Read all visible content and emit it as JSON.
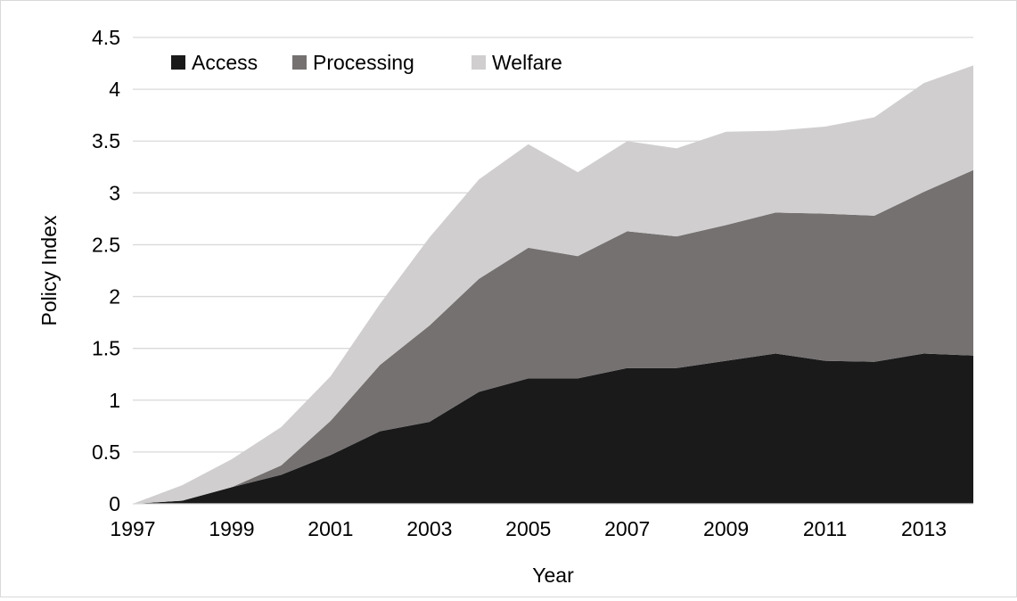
{
  "chart_data": {
    "type": "area",
    "stacked": true,
    "title": "",
    "xlabel": "Year",
    "ylabel": "Policy Index",
    "ylim": [
      0,
      4.5
    ],
    "xlim": [
      1997,
      2014
    ],
    "yticks": [
      "0",
      "0.5",
      "1",
      "1.5",
      "2",
      "2.5",
      "3",
      "3.5",
      "4",
      "4.5"
    ],
    "xticks": [
      "1997",
      "1999",
      "2001",
      "2003",
      "2005",
      "2007",
      "2009",
      "2011",
      "2013"
    ],
    "grid": true,
    "legend_position": "top-left",
    "x": [
      1997,
      1998,
      1999,
      2000,
      2001,
      2002,
      2003,
      2004,
      2005,
      2006,
      2007,
      2008,
      2009,
      2010,
      2011,
      2012,
      2013,
      2014
    ],
    "series": [
      {
        "name": "Access",
        "color": "#1a1a1a",
        "values": [
          0,
          0.03,
          0.16,
          0.28,
          0.47,
          0.7,
          0.79,
          1.08,
          1.21,
          1.21,
          1.31,
          1.31,
          1.38,
          1.45,
          1.38,
          1.37,
          1.45,
          1.43
        ]
      },
      {
        "name": "Processing",
        "color": "#757171",
        "values": [
          0,
          0,
          0,
          0.09,
          0.33,
          0.64,
          0.93,
          1.09,
          1.26,
          1.18,
          1.32,
          1.27,
          1.31,
          1.36,
          1.42,
          1.41,
          1.56,
          1.79
        ]
      },
      {
        "name": "Welfare",
        "color": "#d0cece",
        "values": [
          0,
          0.15,
          0.27,
          0.37,
          0.43,
          0.59,
          0.85,
          0.96,
          1.0,
          0.81,
          0.87,
          0.85,
          0.9,
          0.79,
          0.84,
          0.95,
          1.05,
          1.01
        ]
      }
    ]
  }
}
